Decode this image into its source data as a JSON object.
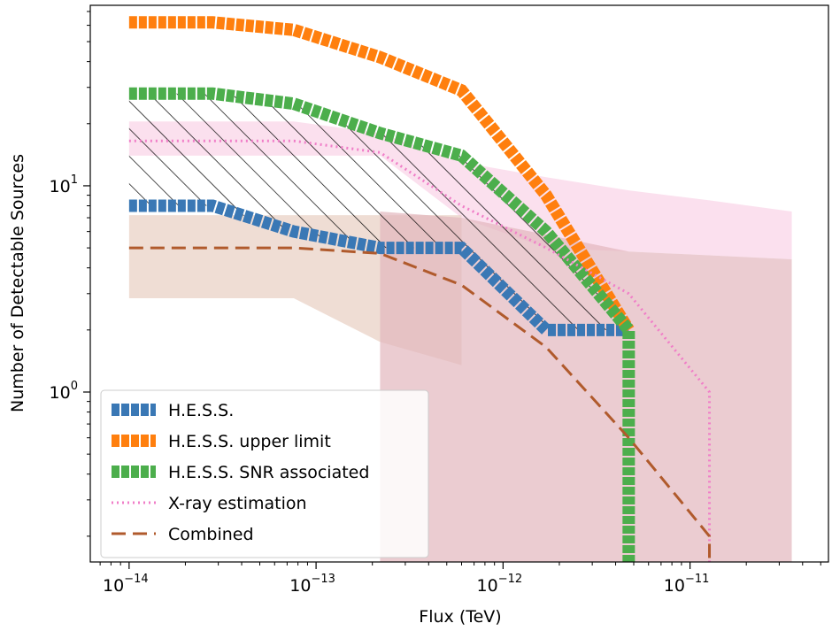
{
  "chart_data": {
    "type": "line",
    "xlabel": "Flux (TeV)",
    "ylabel": "Number of Detectable Sources",
    "xscale": "log",
    "yscale": "log",
    "xlim": [
      6.2e-15,
      5.5e-11
    ],
    "ylim": [
      0.15,
      75
    ],
    "grid": false,
    "legend_position": "lower-left",
    "x_ticks": [
      {
        "value": 1e-14,
        "base": "10",
        "exp": "−14"
      },
      {
        "value": 1e-13,
        "base": "10",
        "exp": "−13"
      },
      {
        "value": 1e-12,
        "base": "10",
        "exp": "−12"
      },
      {
        "value": 1e-11,
        "base": "10",
        "exp": "−11"
      }
    ],
    "y_ticks": [
      {
        "value": 1,
        "base": "10",
        "exp": "0"
      },
      {
        "value": 10,
        "base": "10",
        "exp": "1"
      }
    ],
    "series": [
      {
        "name": "H.E.S.S.",
        "style": "thick-squares",
        "color": "#3a78b5",
        "x": [
          1e-14,
          2.8e-14,
          7.6e-14,
          2.2e-13,
          6e-13,
          1.7e-12,
          4.7e-12
        ],
        "y": [
          8,
          8,
          6,
          5,
          5,
          2,
          2
        ]
      },
      {
        "name": "H.E.S.S. upper limit",
        "style": "thick-squares",
        "color": "#ff7f0e",
        "x": [
          1e-14,
          2.8e-14,
          7.6e-14,
          2.2e-13,
          6e-13,
          1.7e-12,
          4.7e-12
        ],
        "y": [
          62,
          62,
          57,
          42,
          29,
          9,
          2
        ]
      },
      {
        "name": "H.E.S.S. SNR associated",
        "style": "thick-squares",
        "color": "#4cae4c",
        "x": [
          1e-14,
          2.8e-14,
          7.6e-14,
          2.2e-13,
          6e-13,
          1.7e-12,
          4.7e-12,
          4.7e-12
        ],
        "y": [
          28,
          28,
          25,
          18,
          14,
          6,
          2,
          0.15
        ]
      },
      {
        "name": "X-ray estimation",
        "style": "dotted",
        "color": "#f07ec8",
        "x": [
          1e-14,
          7.6e-14,
          2.2e-13,
          6e-13,
          1.7e-12,
          4.7e-12,
          1.27e-11,
          1.27e-11
        ],
        "y": [
          16.5,
          16.5,
          14.5,
          8,
          5,
          3,
          1,
          0.15
        ]
      },
      {
        "name": "Combined",
        "style": "dashed",
        "color": "#b05a2c",
        "x": [
          1e-14,
          7.6e-14,
          2.2e-13,
          6e-13,
          1.7e-12,
          4.7e-12,
          1.27e-11,
          1.27e-11
        ],
        "y": [
          5,
          5,
          4.7,
          3.3,
          1.65,
          0.6,
          0.2,
          0.15
        ]
      }
    ],
    "bands": [
      {
        "color": "#f9d5e8",
        "opacity": 0.75,
        "x": [
          1e-14,
          7.6e-14,
          2.2e-13,
          6e-13,
          1.7e-12,
          4.7e-12,
          1.27e-11,
          3.5e-11
        ],
        "upper": [
          20.5,
          20.5,
          18,
          13,
          11,
          9.5,
          8.5,
          7.5
        ],
        "lower": [
          14,
          14,
          14,
          7,
          5,
          4.8,
          4.6,
          4.4
        ]
      },
      {
        "color": "#ead2c6",
        "opacity": 0.75,
        "x": [
          1e-14,
          7.6e-14,
          2.2e-13,
          6e-13,
          6e-13
        ],
        "upper": [
          7.2,
          7.2,
          7.2,
          7.2,
          7.2
        ],
        "lower": [
          2.85,
          2.85,
          1.75,
          1.35,
          0.15
        ]
      },
      {
        "color": "#e3b7bd",
        "opacity": 0.7,
        "x": [
          2.2e-13,
          6e-13,
          1.7e-12,
          4.7e-12,
          1.27e-11,
          3.5e-11
        ],
        "upper": [
          7.5,
          7,
          5.8,
          4.8,
          4.6,
          4.4
        ],
        "lower": [
          0.15,
          0.15,
          0.15,
          0.15,
          0.15,
          0.15
        ]
      }
    ],
    "hatch_region": {
      "between": [
        "H.E.S.S.",
        "H.E.S.S. SNR associated"
      ],
      "pattern": "diagonal"
    }
  }
}
